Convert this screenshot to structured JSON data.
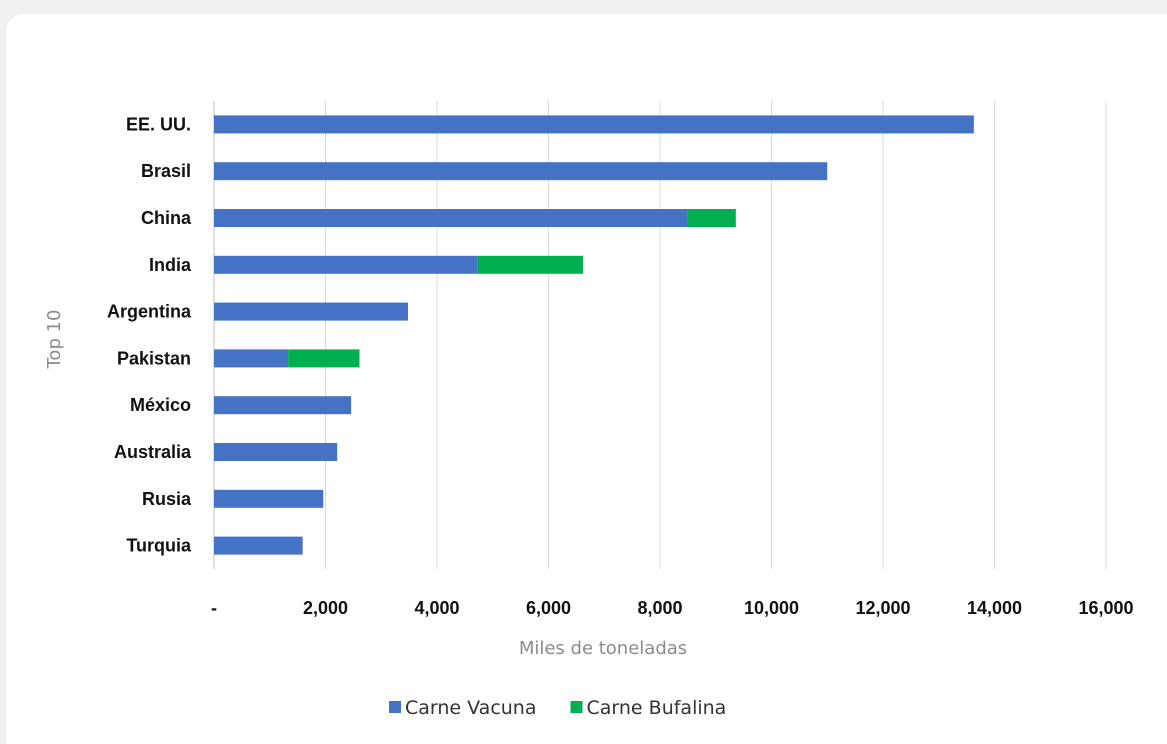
{
  "chart_data": {
    "type": "bar",
    "orientation": "horizontal",
    "stacked": true,
    "categories": [
      "EE. UU.",
      "Brasil",
      "China",
      "India",
      "Argentina",
      "Pakistan",
      "México",
      "Australia",
      "Rusia",
      "Turquia"
    ],
    "series": [
      {
        "name": "Carne Vacuna",
        "color": "#4472c4",
        "values": [
          13630,
          11000,
          8500,
          4720,
          3480,
          1330,
          2460,
          2210,
          1960,
          1590
        ]
      },
      {
        "name": "Carne Bufalina",
        "color": "#00b050",
        "values": [
          0,
          0,
          860,
          1900,
          0,
          1280,
          0,
          0,
          0,
          0
        ]
      }
    ],
    "xlabel": "Miles de toneladas",
    "ylabel": "Top 10",
    "xlim": [
      0,
      16000
    ],
    "xticks": [
      0,
      2000,
      4000,
      6000,
      8000,
      10000,
      12000,
      14000,
      16000
    ],
    "xtick_labels": [
      "-",
      "2,000",
      "4,000",
      "6,000",
      "8,000",
      "10,000",
      "12,000",
      "14,000",
      "16,000"
    ],
    "grid": "vertical",
    "legend": "bottom"
  }
}
